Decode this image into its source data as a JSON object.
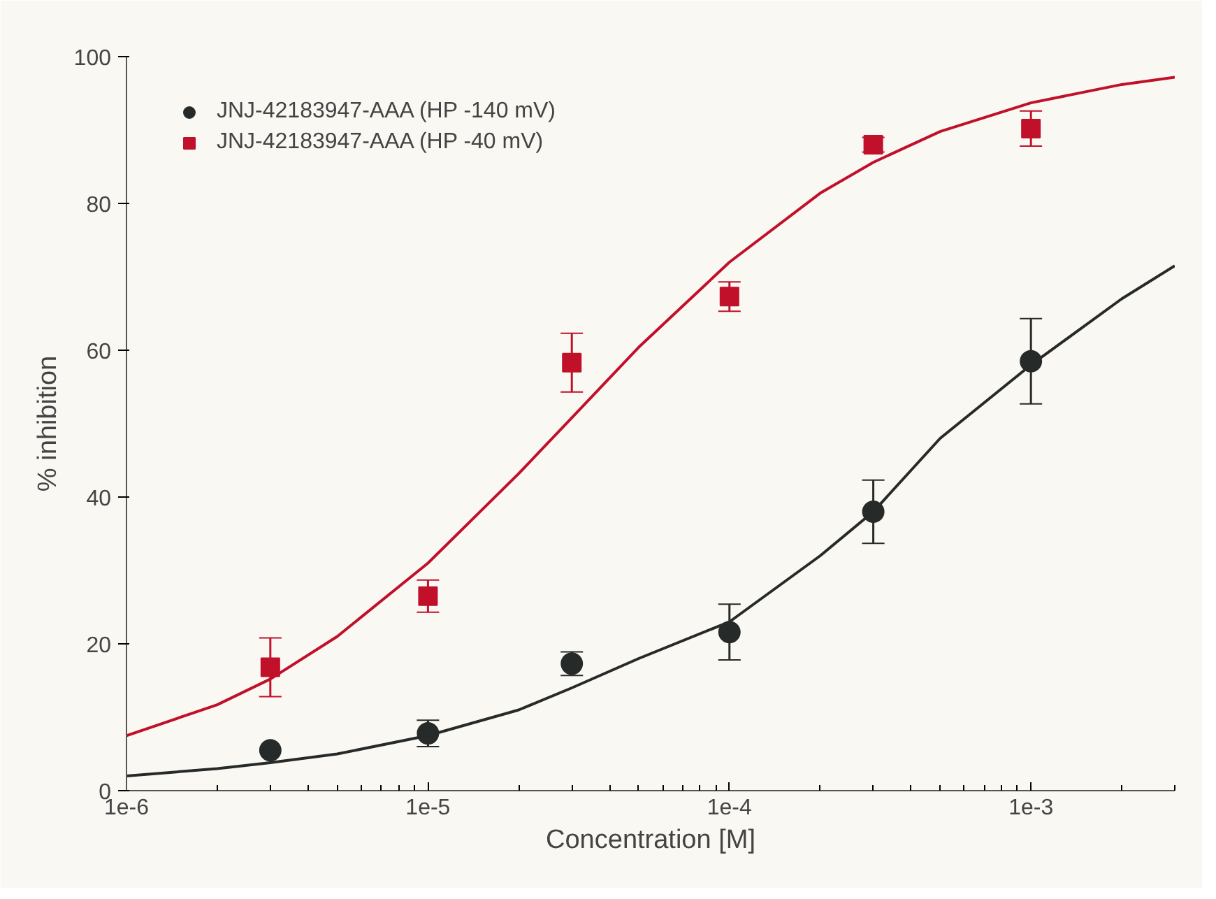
{
  "chart_data": {
    "type": "scatter",
    "xlabel": "Concentration [M]",
    "ylabel": "% inhibition",
    "x": [
      3e-06,
      1e-05,
      3e-05,
      0.0001,
      0.0003,
      0.001
    ],
    "series": [
      {
        "name": "JNJ-42183947-AAA (HP -140 mV)",
        "color": "#262a28",
        "marker": "circle",
        "values": [
          5.5,
          7.8,
          17.3,
          21.6,
          38,
          58.5
        ],
        "errors": [
          null,
          1.8,
          1.6,
          3.8,
          4.3,
          5.8
        ]
      },
      {
        "name": "JNJ-42183947-AAA (HP -40 mV)",
        "color": "#c0102a",
        "marker": "square",
        "values": [
          16.8,
          26.5,
          58.3,
          67.3,
          88,
          90.2
        ],
        "errors": [
          4,
          2.2,
          4,
          2,
          1,
          2.4
        ]
      },
      {
        "type": "line",
        "color": "#262a28",
        "x": [
          1e-06,
          2e-06,
          3e-06,
          5e-06,
          1e-05,
          2e-05,
          3e-05,
          5e-05,
          0.0001,
          0.0002,
          0.0003,
          0.0005,
          0.001,
          0.002,
          0.003
        ],
        "values": [
          2,
          3,
          3.8,
          5,
          7.5,
          11,
          14,
          18,
          23,
          32,
          38,
          48,
          58,
          67,
          71.5
        ]
      },
      {
        "type": "line",
        "color": "#c0102a",
        "x": [
          1e-06,
          2e-06,
          3e-06,
          5e-06,
          1e-05,
          2e-05,
          3e-05,
          5e-05,
          0.0001,
          0.0002,
          0.0003,
          0.0005,
          0.001,
          0.002,
          0.003
        ],
        "values": [
          7.5,
          11.7,
          15.2,
          21,
          31,
          43.2,
          50.8,
          60.4,
          72,
          81.4,
          85.6,
          89.8,
          93.7,
          96.2,
          97.2
        ]
      }
    ],
    "log": "x",
    "xlim": [
      1e-06,
      0.003
    ],
    "xticks": [
      {
        "value": 1e-06,
        "label": "1e-6"
      },
      {
        "value": 1e-05,
        "label": "1e-5"
      },
      {
        "value": 0.0001,
        "label": "1e-4"
      },
      {
        "value": 0.001,
        "label": "1e-3"
      }
    ],
    "ylim": [
      0,
      100
    ],
    "yticks": [
      0,
      20,
      40,
      60,
      80,
      100
    ],
    "grid": false,
    "legend": "top left"
  }
}
